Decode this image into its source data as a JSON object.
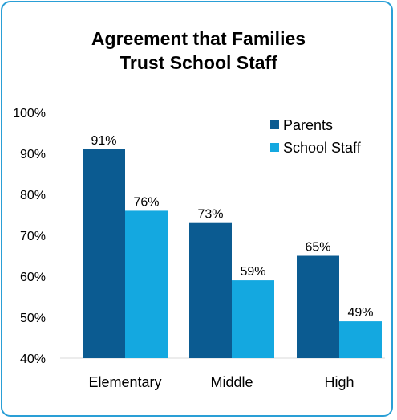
{
  "chart_data": {
    "type": "bar",
    "title_lines": [
      "Agreement that Families",
      "Trust School Staff"
    ],
    "categories": [
      "Elementary",
      "Middle",
      "High"
    ],
    "series": [
      {
        "name": "Parents",
        "values": [
          91,
          73,
          65
        ],
        "color": "#0b5b91"
      },
      {
        "name": "School Staff",
        "values": [
          76,
          59,
          49
        ],
        "color": "#14a8e0"
      }
    ],
    "ylim": [
      40,
      100
    ],
    "yticks": [
      40,
      50,
      60,
      70,
      80,
      90,
      100
    ],
    "value_suffix": "%",
    "legend_position": "top-right",
    "grid": false
  },
  "frame_color": "#2a9fd6"
}
